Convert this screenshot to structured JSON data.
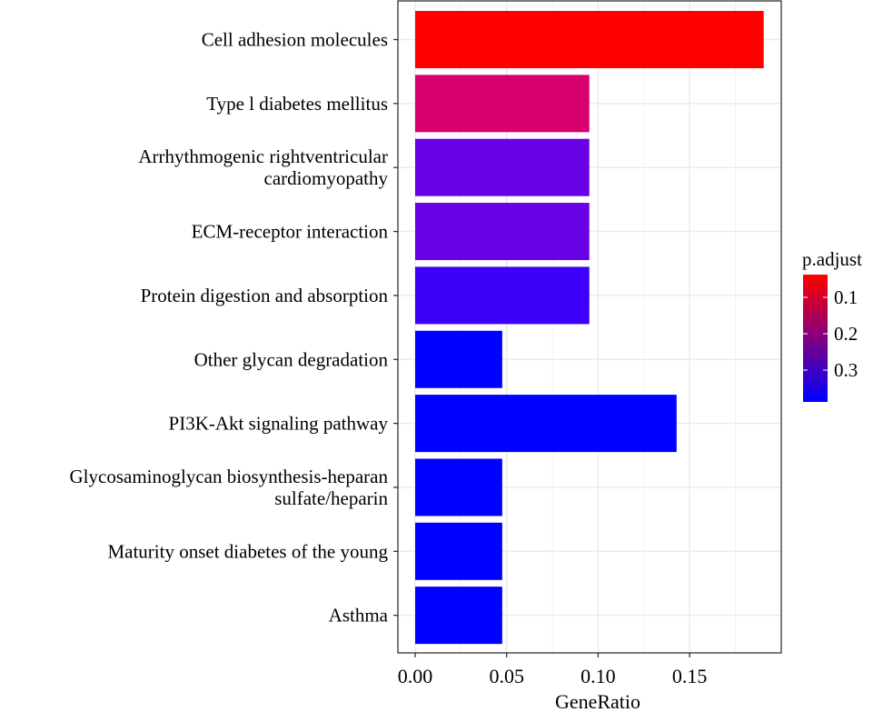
{
  "chart_data": {
    "type": "bar",
    "orientation": "horizontal",
    "title": "",
    "xlabel": "GeneRatio",
    "ylabel": "",
    "xlim": [
      0,
      0.195
    ],
    "xticks": [
      0,
      0.05,
      0.1,
      0.15
    ],
    "xtick_labels": [
      "0.00",
      "0.05",
      "0.10",
      "0.15"
    ],
    "grid": true,
    "categories": [
      "Cell adhesion molecules",
      "Type l diabetes mellitus",
      "Arrhythmogenic rightventricular\ncardiomyopathy",
      "ECM-receptor interaction",
      "Protein digestion and absorption",
      "Other glycan degradation",
      "PI3K-Akt signaling pathway",
      "Glycosaminoglycan biosynthesis-heparan\nsulfate/heparin",
      "Maturity onset diabetes of the young",
      "Asthma"
    ],
    "values": [
      0.1905,
      0.0952,
      0.0952,
      0.0952,
      0.0952,
      0.0476,
      0.1429,
      0.0476,
      0.0476,
      0.0476
    ],
    "colors": [
      "#ff0000",
      "#d7006e",
      "#6a00e6",
      "#6a00e6",
      "#3c00f8",
      "#0000ff",
      "#0000ff",
      "#0000ff",
      "#0000ff",
      "#0000ff"
    ],
    "p_adjust": [
      0.04,
      0.096,
      0.245,
      0.245,
      0.31,
      0.387,
      0.387,
      0.387,
      0.387,
      0.387
    ],
    "legend": {
      "title": "p.adjust",
      "placement": "right",
      "range": [
        0.0375,
        0.3875
      ],
      "ticks": [
        0.1,
        0.2,
        0.3
      ],
      "tick_labels": [
        "0.1",
        "0.2",
        "0.3"
      ],
      "low_color": "#ff0000",
      "high_color": "#0000ff"
    }
  }
}
